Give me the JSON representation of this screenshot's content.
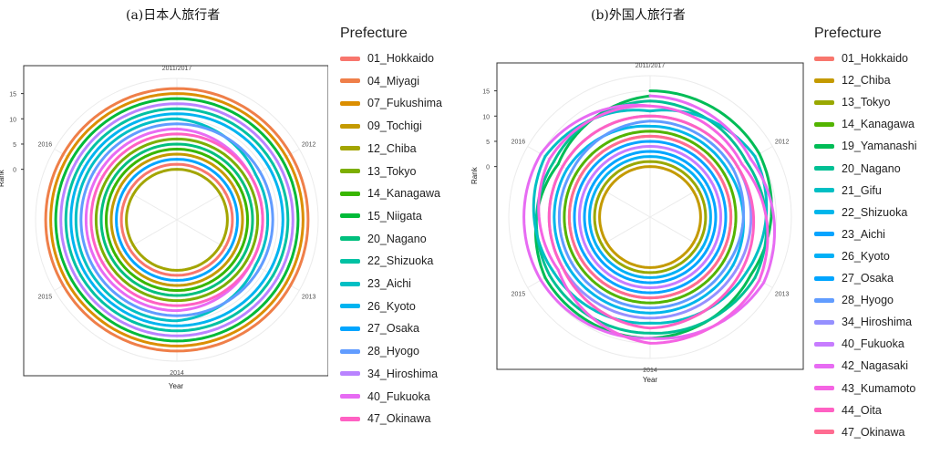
{
  "chart_data": [
    {
      "type": "line",
      "coord": "polar",
      "title": "(a)日本人旅行者",
      "xlabel": "Year",
      "ylabel": "Rank",
      "theta_ticks": [
        "2011/2017",
        "2012",
        "2013",
        "2014",
        "2015",
        "2016"
      ],
      "r_ticks": [
        "0",
        "5",
        "10",
        "15"
      ],
      "ylim": [
        -10,
        18
      ],
      "legend_title": "Prefecture",
      "legend_position": "right",
      "x": [
        2011,
        2012,
        2013,
        2014,
        2015,
        2016,
        2017
      ],
      "series": [
        {
          "name": "01_Hokkaido",
          "color": "#F8766D",
          "values": [
            1,
            1,
            1,
            1,
            1,
            1,
            1
          ]
        },
        {
          "name": "04_Miyagi",
          "color": "#EF7F49",
          "values": [
            16,
            16,
            16,
            16,
            16,
            16,
            16
          ]
        },
        {
          "name": "07_Fukushima",
          "color": "#DB8E00",
          "values": [
            15,
            15,
            15,
            15,
            15,
            15,
            15
          ]
        },
        {
          "name": "09_Tochigi",
          "color": "#C49A00",
          "values": [
            3,
            3,
            3,
            3,
            3,
            3,
            3
          ]
        },
        {
          "name": "12_Chiba",
          "color": "#A3A500",
          "values": [
            0,
            0,
            0,
            0,
            0,
            0,
            0
          ]
        },
        {
          "name": "13_Tokyo",
          "color": "#7CAE00",
          "values": [
            6,
            6,
            6,
            6,
            6,
            6,
            6
          ]
        },
        {
          "name": "14_Kanagawa",
          "color": "#39B600",
          "values": [
            4,
            4,
            4,
            4,
            4,
            4,
            4
          ]
        },
        {
          "name": "15_Niigata",
          "color": "#00BA38",
          "values": [
            14,
            14,
            14,
            14,
            14,
            14,
            14
          ]
        },
        {
          "name": "20_Nagano",
          "color": "#00BF7D",
          "values": [
            5,
            5,
            5,
            5,
            5,
            5,
            5
          ]
        },
        {
          "name": "22_Shizuoka",
          "color": "#00C1A3",
          "values": [
            12,
            12,
            12,
            12,
            12,
            12,
            12
          ]
        },
        {
          "name": "23_Aichi",
          "color": "#00BFC4",
          "values": [
            10,
            8,
            8,
            10,
            10,
            10,
            10
          ]
        },
        {
          "name": "26_Kyoto",
          "color": "#00B4F0",
          "values": [
            11,
            11,
            11,
            11,
            11,
            11,
            11
          ]
        },
        {
          "name": "27_Osaka",
          "color": "#00A5FF",
          "values": [
            2,
            2,
            2,
            2,
            2,
            2,
            2
          ]
        },
        {
          "name": "28_Hyogo",
          "color": "#619CFF",
          "values": [
            9,
            9,
            9,
            9,
            9,
            9,
            9
          ]
        },
        {
          "name": "34_Hiroshima",
          "color": "#B983FF",
          "values": [
            13,
            13,
            13,
            13,
            13,
            13,
            13
          ]
        },
        {
          "name": "40_Fukuoka",
          "color": "#E76BF3",
          "values": [
            8,
            7,
            7,
            8,
            8,
            8,
            8
          ]
        },
        {
          "name": "47_Okinawa",
          "color": "#FF61C3",
          "values": [
            7,
            7,
            7,
            7,
            7,
            7,
            7
          ]
        }
      ]
    },
    {
      "type": "line",
      "coord": "polar",
      "title": "(b)外国人旅行者",
      "xlabel": "Year",
      "ylabel": "Rank",
      "theta_ticks": [
        "2011/2017",
        "2012",
        "2013",
        "2014",
        "2015",
        "2016"
      ],
      "r_ticks": [
        "0",
        "5",
        "10",
        "15"
      ],
      "ylim": [
        -10,
        18
      ],
      "legend_title": "Prefecture",
      "legend_position": "right",
      "x": [
        2011,
        2012,
        2013,
        2014,
        2015,
        2016,
        2017
      ],
      "series": [
        {
          "name": "01_Hokkaido",
          "color": "#F8766D",
          "values": [
            6,
            6,
            6,
            6,
            6,
            6,
            6
          ]
        },
        {
          "name": "12_Chiba",
          "color": "#C49A00",
          "values": [
            0,
            0,
            0,
            0,
            0,
            0,
            0
          ]
        },
        {
          "name": "13_Tokyo",
          "color": "#99A800",
          "values": [
            1,
            1,
            1,
            1,
            1,
            1,
            1
          ]
        },
        {
          "name": "14_Kanagawa",
          "color": "#53B400",
          "values": [
            7,
            7,
            7,
            7,
            7,
            7,
            7
          ]
        },
        {
          "name": "19_Yamanashi",
          "color": "#00BC56",
          "values": [
            15,
            15,
            13,
            14,
            14,
            11,
            14
          ]
        },
        {
          "name": "20_Nagano",
          "color": "#00C094",
          "values": [
            13,
            12,
            14,
            13,
            13,
            12,
            13
          ]
        },
        {
          "name": "21_Gifu",
          "color": "#00BFC4",
          "values": [
            11,
            14,
            12,
            11,
            12,
            14,
            11
          ]
        },
        {
          "name": "22_Shizuoka",
          "color": "#00B6EB",
          "values": [
            8,
            8,
            9,
            9,
            9,
            9,
            8
          ]
        },
        {
          "name": "23_Aichi",
          "color": "#06A4FF",
          "values": [
            5,
            5,
            5,
            5,
            5,
            5,
            5
          ]
        },
        {
          "name": "26_Kyoto",
          "color": "#00B0F6",
          "values": [
            2,
            2,
            2,
            2,
            2,
            2,
            2
          ]
        },
        {
          "name": "27_Osaka",
          "color": "#00A5FF",
          "values": [
            3,
            3,
            3,
            3,
            3,
            3,
            3
          ]
        },
        {
          "name": "28_Hyogo",
          "color": "#619CFF",
          "values": [
            9,
            9,
            8,
            8,
            8,
            8,
            9
          ]
        },
        {
          "name": "34_Hiroshima",
          "color": "#9590FF",
          "values": [
            10,
            10,
            10,
            10,
            10,
            10,
            10
          ]
        },
        {
          "name": "40_Fukuoka",
          "color": "#C77CFF",
          "values": [
            4,
            4,
            4,
            4,
            4,
            4,
            4
          ]
        },
        {
          "name": "42_Nagasaki",
          "color": "#E76BF3",
          "values": [
            14,
            13,
            16,
            14,
            15,
            15,
            12
          ]
        },
        {
          "name": "43_Kumamoto",
          "color": "#F564E3",
          "values": [
            12,
            11,
            15,
            15,
            11,
            13,
            12
          ]
        },
        {
          "name": "44_Oita",
          "color": "#FF61C3",
          "values": [
            10,
            10,
            11,
            12,
            10,
            10,
            10
          ]
        },
        {
          "name": "47_Okinawa",
          "color": "#FF6C91",
          "values": [
            6,
            6,
            6,
            6,
            6,
            6,
            6
          ]
        }
      ]
    }
  ]
}
